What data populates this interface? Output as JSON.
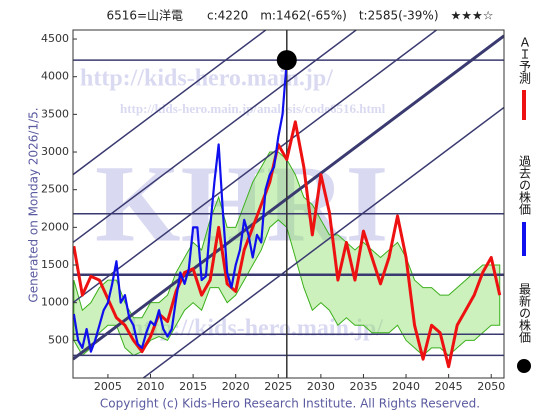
{
  "chart_data": {
    "type": "line",
    "title": "6516=山洋電　　c:4220　m:1462(-65%)　t:2585(-39%)　★★★☆",
    "side_note": "Generated on Monday 2026/1/5.",
    "footer": "Copyright (c) Kids-Hero Research Institute. All Rights Reserved.",
    "watermarks": [
      "http://kids-hero.main.jp/",
      "http://kids-hero.main.jp/analysis/code6516.html",
      "KHRI",
      "http://kids-hero.main.jp/"
    ],
    "xlim": [
      2000.9,
      2051.5
    ],
    "ylim": [
      0,
      4620
    ],
    "xticks": [
      2005,
      2010,
      2015,
      2020,
      2025,
      2030,
      2035,
      2040,
      2045,
      2050
    ],
    "yticks": [
      500,
      1000,
      1500,
      2000,
      2500,
      3000,
      3500,
      4000,
      4500
    ],
    "band": {
      "color": "#8fe06a",
      "x": [
        2001,
        2002,
        2003,
        2004,
        2005,
        2006,
        2007,
        2008,
        2009,
        2010,
        2011,
        2012,
        2013,
        2014,
        2015,
        2016,
        2017,
        2018,
        2019,
        2020,
        2021,
        2022,
        2023,
        2024,
        2025,
        2026,
        2027,
        2028,
        2029,
        2030,
        2031,
        2032,
        2033,
        2034,
        2035,
        2036,
        2037,
        2038,
        2039,
        2040,
        2041,
        2042,
        2043,
        2044,
        2045,
        2046,
        2047,
        2048,
        2049,
        2050,
        2051
      ],
      "lower": [
        500,
        300,
        400,
        600,
        700,
        700,
        400,
        300,
        350,
        500,
        550,
        500,
        700,
        900,
        1000,
        900,
        1200,
        1200,
        1000,
        1100,
        1300,
        1500,
        1700,
        2000,
        2100,
        2000,
        1600,
        1200,
        900,
        1000,
        900,
        700,
        800,
        700,
        700,
        600,
        600,
        600,
        700,
        500,
        400,
        300,
        400,
        400,
        300,
        400,
        500,
        500,
        600,
        700,
        700
      ],
      "upper": [
        1300,
        900,
        1000,
        1200,
        1300,
        1300,
        1000,
        800,
        800,
        1000,
        1000,
        1100,
        1400,
        1600,
        1800,
        1700,
        2100,
        2400,
        2000,
        2000,
        2300,
        2600,
        2800,
        3000,
        3000,
        2900,
        2700,
        2400,
        2300,
        2100,
        1900,
        1900,
        1800,
        1700,
        1800,
        1700,
        1600,
        1700,
        1800,
        1600,
        1300,
        1200,
        1200,
        1100,
        1100,
        1200,
        1300,
        1400,
        1500,
        1500,
        1500
      ]
    },
    "hlines": [
      4220,
      2180,
      1370,
      580,
      300
    ],
    "vline": 2026,
    "diagonals": [
      {
        "x": [
          2000.9,
          2051.5
        ],
        "y": [
          -700,
          3592
        ]
      },
      {
        "x": [
          2000.9,
          2051.5
        ],
        "y": [
          250,
          4542
        ]
      },
      {
        "x": [
          2000.9,
          2051.5
        ],
        "y": [
          1000,
          5292
        ]
      },
      {
        "x": [
          2000.9,
          2051.5
        ],
        "y": [
          1800,
          6092
        ]
      },
      {
        "x": [
          2000.9,
          2051.5
        ],
        "y": [
          2700,
          6992
        ]
      }
    ],
    "series": [
      {
        "name": "ＡＩ予測",
        "color": "#ee1111",
        "x": [
          2001,
          2002,
          2003,
          2004,
          2005,
          2006,
          2007,
          2008,
          2009,
          2010,
          2011,
          2012,
          2013,
          2014,
          2015,
          2016,
          2017,
          2018,
          2019,
          2020,
          2021,
          2022,
          2023,
          2024,
          2025,
          2026,
          2027,
          2028,
          2029,
          2030,
          2031,
          2032,
          2033,
          2034,
          2035,
          2036,
          2037,
          2038,
          2039,
          2040,
          2041,
          2042,
          2043,
          2044,
          2045,
          2046,
          2047,
          2048,
          2049,
          2050,
          2051
        ],
        "values": [
          1750,
          1100,
          1350,
          1300,
          1050,
          800,
          700,
          500,
          350,
          550,
          850,
          750,
          1150,
          1400,
          1450,
          1100,
          1300,
          2000,
          1250,
          1150,
          1700,
          2000,
          2300,
          2600,
          3100,
          2900,
          3400,
          2800,
          1900,
          2700,
          2200,
          1300,
          1800,
          1300,
          1950,
          1600,
          1250,
          1600,
          2150,
          1600,
          700,
          250,
          700,
          600,
          150,
          700,
          900,
          1100,
          1400,
          1600,
          1100
        ]
      },
      {
        "name": "過去の株価",
        "color": "#1010ee",
        "x": [
          2001,
          2001.5,
          2002,
          2002.5,
          2003,
          2003.5,
          2004,
          2004.5,
          2005,
          2005.5,
          2006,
          2006.5,
          2007,
          2007.5,
          2008,
          2008.5,
          2009,
          2009.5,
          2010,
          2010.5,
          2011,
          2011.5,
          2012,
          2012.5,
          2013,
          2013.5,
          2014,
          2014.5,
          2015,
          2015.5,
          2016,
          2016.5,
          2017,
          2017.5,
          2018,
          2018.5,
          2019,
          2019.5,
          2020,
          2020.5,
          2021,
          2021.5,
          2022,
          2022.5,
          2023,
          2023.5,
          2024,
          2024.5,
          2025,
          2025.5,
          2026
        ],
        "values": [
          850,
          500,
          400,
          650,
          350,
          500,
          700,
          900,
          1000,
          1250,
          1550,
          1000,
          1100,
          800,
          700,
          450,
          400,
          600,
          750,
          700,
          900,
          650,
          550,
          650,
          1050,
          1400,
          1250,
          1450,
          2000,
          2000,
          1300,
          1350,
          2000,
          2600,
          3100,
          2200,
          1400,
          1200,
          1500,
          1700,
          2100,
          1900,
          1600,
          1900,
          1800,
          2500,
          2700,
          2800,
          3200,
          3500,
          4220
        ]
      }
    ],
    "latest": {
      "name": "最新の株価",
      "color": "#000000",
      "x": 2026,
      "y": 4220
    }
  }
}
